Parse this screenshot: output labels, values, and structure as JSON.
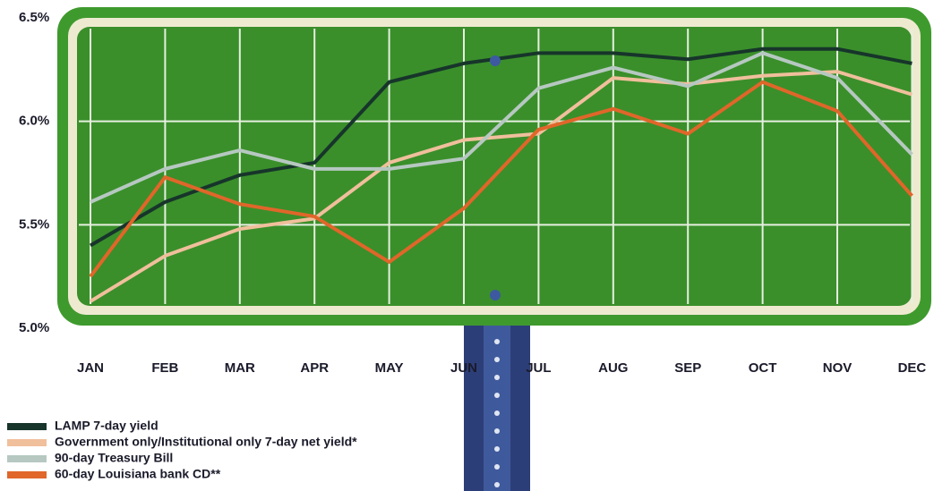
{
  "chart_data": {
    "type": "line",
    "categories": [
      "JAN",
      "FEB",
      "MAR",
      "APR",
      "MAY",
      "JUN",
      "JUL",
      "AUG",
      "SEP",
      "OCT",
      "NOV",
      "DEC"
    ],
    "series": [
      {
        "name": "LAMP 7-day yield",
        "color": "#17352b",
        "values": [
          5.4,
          5.61,
          5.74,
          5.8,
          6.19,
          6.28,
          6.33,
          6.33,
          6.3,
          6.35,
          6.35,
          6.28
        ]
      },
      {
        "name": "Government only/Institutional only 7-day net yield*",
        "color": "#f0bf9c",
        "values": [
          5.13,
          5.35,
          5.48,
          5.53,
          5.8,
          5.91,
          5.94,
          6.21,
          6.18,
          6.22,
          6.24,
          6.13
        ]
      },
      {
        "name": "90-day Treasury Bill",
        "color": "#b6c8c1",
        "values": [
          5.61,
          5.77,
          5.86,
          5.77,
          5.77,
          5.82,
          6.16,
          6.26,
          6.17,
          6.33,
          6.21,
          5.84
        ]
      },
      {
        "name": "60-day Louisiana bank CD**",
        "color": "#e0662a",
        "values": [
          5.25,
          5.73,
          5.6,
          5.54,
          5.32,
          5.58,
          5.96,
          6.06,
          5.94,
          6.19,
          6.05,
          5.64
        ]
      }
    ],
    "ylim": [
      5.0,
      6.5
    ],
    "yticks": [
      {
        "value": 5.0,
        "label": "5.0%"
      },
      {
        "value": 5.5,
        "label": "5.5%"
      },
      {
        "value": 6.0,
        "label": "6.0%"
      },
      {
        "value": 6.5,
        "label": "6.5%"
      }
    ],
    "grid": true
  }
}
